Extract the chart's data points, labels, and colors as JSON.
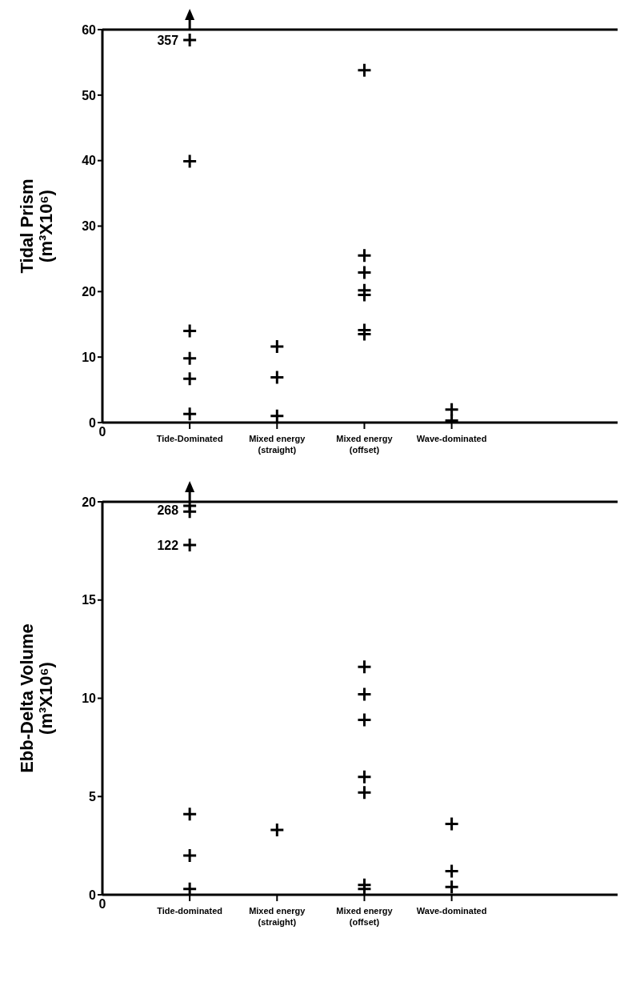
{
  "chart_data": [
    {
      "type": "scatter",
      "categories": [
        "Tide-Dominated",
        "Mixed energy\n(straight)",
        "Mixed energy\n(offset)",
        "Wave-dominated"
      ],
      "ylabel": "Tidal Prism\n(m³X10⁶)",
      "ylim": [
        0,
        60
      ],
      "yticks": [
        0,
        10,
        20,
        30,
        40,
        50,
        60
      ],
      "marker": "cross",
      "series": [
        {
          "color": "#000000",
          "x": [
            "Tide-Dominated",
            "Tide-Dominated",
            "Tide-Dominated",
            "Tide-Dominated",
            "Tide-Dominated",
            "Tide-Dominated",
            "Mixed energy\n(straight)",
            "Mixed energy\n(straight)",
            "Mixed energy\n(straight)",
            "Mixed energy\n(offset)",
            "Mixed energy\n(offset)",
            "Mixed energy\n(offset)",
            "Mixed energy\n(offset)",
            "Mixed energy\n(offset)",
            "Mixed energy\n(offset)",
            "Mixed energy\n(offset)",
            "Wave-dominated",
            "Wave-dominated"
          ],
          "values": [
            58.4,
            39.9,
            14.0,
            9.8,
            6.7,
            1.3,
            11.6,
            6.9,
            1.0,
            53.8,
            25.5,
            22.9,
            20.2,
            19.5,
            14.1,
            13.5,
            2.0,
            0.3
          ]
        }
      ],
      "annotations": [
        {
          "text": "357",
          "x": "Tide-Dominated",
          "y": 58.4
        },
        "0"
      ]
    },
    {
      "type": "scatter",
      "categories": [
        "Tide-dominated",
        "Mixed energy\n(straight)",
        "Mixed energy\n(offset)",
        "Wave-dominated"
      ],
      "ylabel": "Ebb-Delta Volume\n(m³X10⁶)",
      "ylim": [
        0,
        20
      ],
      "yticks": [
        0,
        5,
        10,
        15,
        20
      ],
      "marker": "cross",
      "series": [
        {
          "color": "#000000",
          "x": [
            "Tide-dominated",
            "Tide-dominated",
            "Tide-dominated",
            "Tide-dominated",
            "Tide-dominated",
            "Tide-dominated",
            "Mixed energy\n(straight)",
            "Mixed energy\n(offset)",
            "Mixed energy\n(offset)",
            "Mixed energy\n(offset)",
            "Mixed energy\n(offset)",
            "Mixed energy\n(offset)",
            "Mixed energy\n(offset)",
            "Mixed energy\n(offset)",
            "Wave-dominated",
            "Wave-dominated",
            "Wave-dominated"
          ],
          "values": [
            19.8,
            19.5,
            17.8,
            4.1,
            2.0,
            0.3,
            3.3,
            11.6,
            10.2,
            8.9,
            6.0,
            5.2,
            0.5,
            0.3,
            3.6,
            1.2,
            0.4
          ]
        }
      ],
      "annotations": [
        {
          "text": "268",
          "x": "Tide-dominated",
          "y": 19.6
        },
        {
          "text": "122",
          "x": "Tide-dominated",
          "y": 17.8
        },
        "0"
      ]
    }
  ]
}
